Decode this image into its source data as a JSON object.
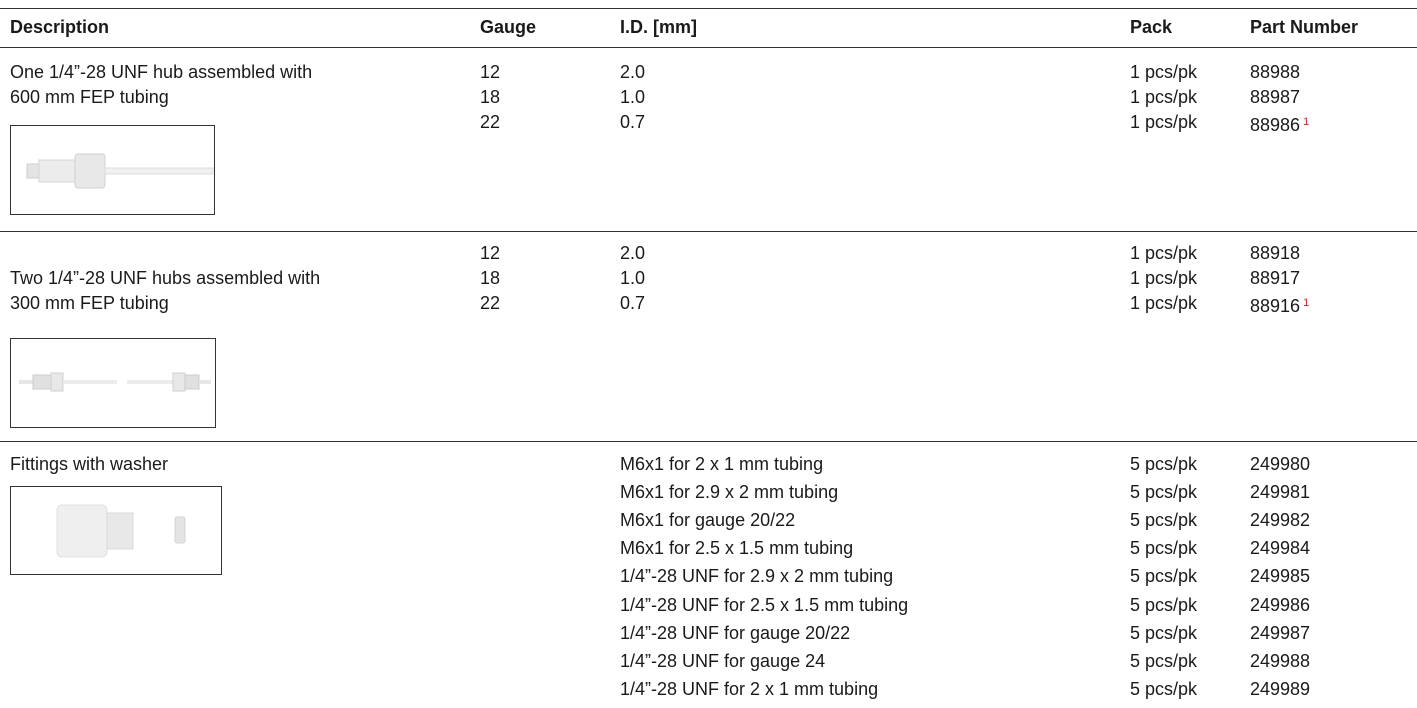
{
  "header": {
    "description": "Description",
    "gauge": "Gauge",
    "id": "I.D. [mm]",
    "pack": "Pack",
    "part": "Part Number"
  },
  "sections": [
    {
      "description": [
        "One 1/4”-28 UNF hub assembled with",
        "600 mm FEP tubing"
      ],
      "rows": [
        {
          "gauge": "12",
          "id": "2.0",
          "pack": "1 pcs/pk",
          "part": "88988"
        },
        {
          "gauge": "18",
          "id": "1.0",
          "pack": "1 pcs/pk",
          "part": "88987"
        },
        {
          "gauge": "22",
          "id": "0.7",
          "pack": "1 pcs/pk",
          "part": "88986",
          "note": "1"
        }
      ]
    },
    {
      "description": [
        "Two 1/4”-28 UNF hubs assembled with",
        "300 mm FEP tubing"
      ],
      "rows": [
        {
          "gauge": "12",
          "id": "2.0",
          "pack": "1 pcs/pk",
          "part": "88918"
        },
        {
          "gauge": "18",
          "id": "1.0",
          "pack": "1 pcs/pk",
          "part": "88917"
        },
        {
          "gauge": "22",
          "id": "0.7",
          "pack": "1 pcs/pk",
          "part": "88916",
          "note": "1"
        }
      ]
    },
    {
      "description": [
        "Fittings with washer"
      ],
      "rows": [
        {
          "id": "M6x1 for 2 x 1 mm tubing",
          "pack": "5 pcs/pk",
          "part": "249980"
        },
        {
          "id": "M6x1 for 2.9 x 2 mm tubing",
          "pack": "5 pcs/pk",
          "part": "249981"
        },
        {
          "id": "M6x1 for gauge 20/22",
          "pack": "5 pcs/pk",
          "part": "249982"
        },
        {
          "id": "M6x1 for 2.5 x 1.5 mm tubing",
          "pack": "5 pcs/pk",
          "part": "249984"
        },
        {
          "id": "1/4”-28 UNF for 2.9 x 2 mm tubing",
          "pack": "5 pcs/pk",
          "part": "249985"
        },
        {
          "id": "1/4”-28 UNF for 2.5 x 1.5 mm tubing",
          "pack": "5 pcs/pk",
          "part": "249986"
        },
        {
          "id": "1/4”-28 UNF for gauge 20/22",
          "pack": "5 pcs/pk",
          "part": "249987"
        },
        {
          "id": "1/4”-28 UNF for gauge 24",
          "pack": "5 pcs/pk",
          "part": "249988"
        },
        {
          "id": "1/4”-28 UNF for 2 x 1 mm tubing",
          "pack": "5 pcs/pk",
          "part": "249989"
        }
      ]
    }
  ]
}
